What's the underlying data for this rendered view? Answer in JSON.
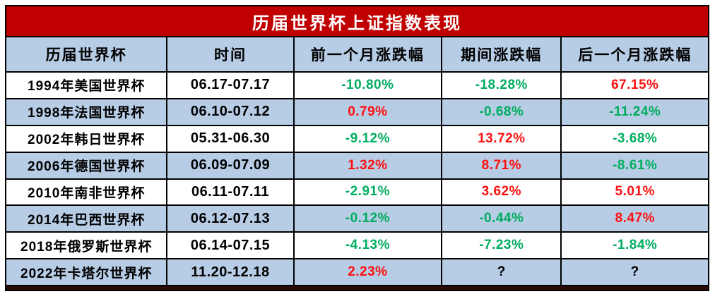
{
  "title": "历届世界杯上证指数表现",
  "colors": {
    "title_bg": "#c00000",
    "stripe": "#b7cce5",
    "up_red": "#fe1010",
    "down_green": "#00ad5f",
    "accent_bar": "#2b0c07"
  },
  "table": {
    "headers": [
      "历届世界杯",
      "时间",
      "前一个月涨跌幅",
      "期间涨跌幅",
      "后一个月涨跌幅"
    ],
    "rows": [
      {
        "event": "1994年美国世界杯",
        "period": "06.17-07.17",
        "values": [
          {
            "text": "-10.80%",
            "trend": "down"
          },
          {
            "text": "-18.28%",
            "trend": "down"
          },
          {
            "text": "67.15%",
            "trend": "up"
          }
        ]
      },
      {
        "event": "1998年法国世界杯",
        "period": "06.10-07.12",
        "values": [
          {
            "text": "0.79%",
            "trend": "up"
          },
          {
            "text": "-0.68%",
            "trend": "down"
          },
          {
            "text": "-11.24%",
            "trend": "down"
          }
        ]
      },
      {
        "event": "2002年韩日世界杯",
        "period": "05.31-06.30",
        "values": [
          {
            "text": "-9.12%",
            "trend": "down"
          },
          {
            "text": "13.72%",
            "trend": "up"
          },
          {
            "text": "-3.68%",
            "trend": "down"
          }
        ]
      },
      {
        "event": "2006年德国世界杯",
        "period": "06.09-07.09",
        "values": [
          {
            "text": "1.32%",
            "trend": "up"
          },
          {
            "text": "8.71%",
            "trend": "up"
          },
          {
            "text": "-8.61%",
            "trend": "down"
          }
        ]
      },
      {
        "event": "2010年南非世界杯",
        "period": "06.11-07.11",
        "values": [
          {
            "text": "-2.91%",
            "trend": "down"
          },
          {
            "text": "3.62%",
            "trend": "up"
          },
          {
            "text": "5.01%",
            "trend": "up"
          }
        ]
      },
      {
        "event": "2014年巴西世界杯",
        "period": "06.12-07.13",
        "values": [
          {
            "text": "-0.12%",
            "trend": "down"
          },
          {
            "text": "-0.44%",
            "trend": "down"
          },
          {
            "text": "8.47%",
            "trend": "up"
          }
        ]
      },
      {
        "event": "2018年俄罗斯世界杯",
        "period": "06.14-07.15",
        "values": [
          {
            "text": "-4.13%",
            "trend": "down"
          },
          {
            "text": "-7.23%",
            "trend": "down"
          },
          {
            "text": "-1.84%",
            "trend": "down"
          }
        ]
      },
      {
        "event": "2022年卡塔尔世界杯",
        "period": "11.20-12.18",
        "values": [
          {
            "text": "2.23%",
            "trend": "up"
          },
          {
            "text": "?",
            "trend": "neutral"
          },
          {
            "text": "?",
            "trend": "neutral"
          }
        ]
      }
    ]
  },
  "chart_data": {
    "type": "table",
    "title": "历届世界杯上证指数表现",
    "columns": [
      "历届世界杯",
      "时间",
      "前一个月涨跌幅",
      "期间涨跌幅",
      "后一个月涨跌幅"
    ],
    "rows": [
      [
        "1994年美国世界杯",
        "06.17-07.17",
        "-10.80%",
        "-18.28%",
        "67.15%"
      ],
      [
        "1998年法国世界杯",
        "06.10-07.12",
        "0.79%",
        "-0.68%",
        "-11.24%"
      ],
      [
        "2002年韩日世界杯",
        "05.31-06.30",
        "-9.12%",
        "13.72%",
        "-3.68%"
      ],
      [
        "2006年德国世界杯",
        "06.09-07.09",
        "1.32%",
        "8.71%",
        "-8.61%"
      ],
      [
        "2010年南非世界杯",
        "06.11-07.11",
        "-2.91%",
        "3.62%",
        "5.01%"
      ],
      [
        "2014年巴西世界杯",
        "06.12-07.13",
        "-0.12%",
        "-0.44%",
        "8.47%"
      ],
      [
        "2018年俄罗斯世界杯",
        "06.14-07.15",
        "-4.13%",
        "-7.23%",
        "-1.84%"
      ],
      [
        "2022年卡塔尔世界杯",
        "11.20-12.18",
        "2.23%",
        "?",
        "?"
      ]
    ],
    "value_color_convention": "red=rise, green=fall, black=unknown"
  }
}
